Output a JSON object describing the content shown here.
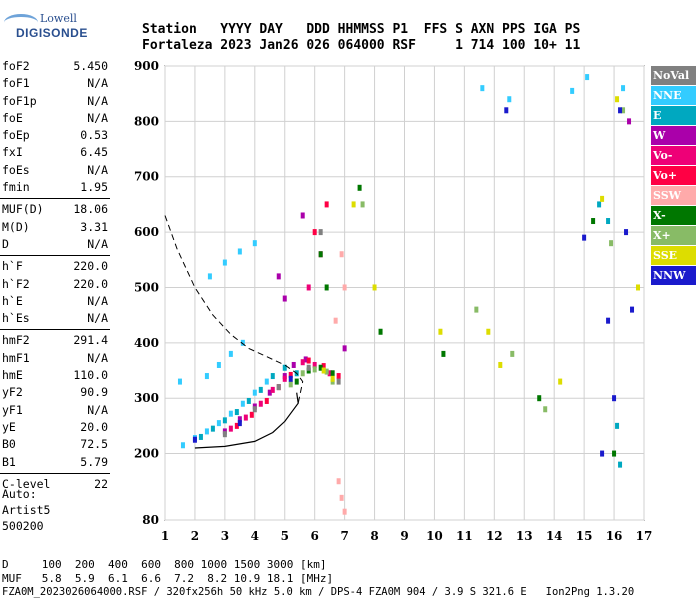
{
  "logo": {
    "line1": "Lowell",
    "line2": "DIGISONDE"
  },
  "header": {
    "line1": "Station   YYYY DAY   DDD HHMMSS P1  FFS S AXN PPS IGA PS",
    "line2": "Fortaleza 2023 Jan26 026 064000 RSF     1 714 100 10+ 11"
  },
  "params": {
    "g1": [
      {
        "name": "foF2",
        "value": "5.450"
      },
      {
        "name": "foF1",
        "value": "N/A"
      },
      {
        "name": "foF1p",
        "value": "N/A"
      },
      {
        "name": "foE",
        "value": "N/A"
      },
      {
        "name": "foEp",
        "value": "0.53"
      },
      {
        "name": "fxI",
        "value": "6.45"
      },
      {
        "name": "foEs",
        "value": "N/A"
      },
      {
        "name": "fmin",
        "value": "1.95"
      }
    ],
    "g2": [
      {
        "name": "MUF(D)",
        "value": "18.06"
      },
      {
        "name": "M(D)",
        "value": "3.31"
      },
      {
        "name": "D",
        "value": "N/A"
      }
    ],
    "g3": [
      {
        "name": "h`F",
        "value": "220.0"
      },
      {
        "name": "h`F2",
        "value": "220.0"
      },
      {
        "name": "h`E",
        "value": "N/A"
      },
      {
        "name": "h`Es",
        "value": "N/A"
      }
    ],
    "g4": [
      {
        "name": "hmF2",
        "value": "291.4"
      },
      {
        "name": "hmF1",
        "value": "N/A"
      },
      {
        "name": "hmE",
        "value": "110.0"
      },
      {
        "name": "yF2",
        "value": "90.9"
      },
      {
        "name": "yF1",
        "value": "N/A"
      },
      {
        "name": "yE",
        "value": "20.0"
      },
      {
        "name": "B0",
        "value": "72.5"
      },
      {
        "name": "B1",
        "value": "5.79"
      }
    ],
    "g5": [
      {
        "name": "C-level",
        "value": "22"
      }
    ]
  },
  "auto": {
    "l1": "Auto:",
    "l2": "Artist5",
    "l3": "500200"
  },
  "legend": [
    {
      "label": "NoVal",
      "color": "#808080"
    },
    {
      "label": "NNE",
      "color": "#33ccff"
    },
    {
      "label": "E",
      "color": "#00a8c0"
    },
    {
      "label": "W",
      "color": "#aa00aa"
    },
    {
      "label": "Vo-",
      "color": "#ee0077"
    },
    {
      "label": "Vo+",
      "color": "#ff0044"
    },
    {
      "label": "SSW",
      "color": "#ffaaaa"
    },
    {
      "label": "X-",
      "color": "#007700"
    },
    {
      "label": "X+",
      "color": "#88bb66"
    },
    {
      "label": "SSE",
      "color": "#dddd00"
    },
    {
      "label": "NNW",
      "color": "#1a1acc"
    }
  ],
  "bottom": {
    "d_line": "D     100  200  400  600  800 1000 1500 3000 [km]",
    "muf_line": "MUF   5.8  5.9  6.1  6.6  7.2  8.2 10.9 18.1 [MHz]",
    "footer": "FZA0M_2023026064000.RSF / 320fx256h 50 kHz 5.0 km / DPS-4 FZA0M 904 / 3.9 S 321.6 E   Ion2Png 1.3.20"
  },
  "chart_data": {
    "type": "scatter",
    "xlim": [
      1,
      17
    ],
    "ylim": [
      80,
      900
    ],
    "xticks": [
      1,
      2,
      3,
      4,
      5,
      6,
      7,
      8,
      9,
      10,
      11,
      12,
      13,
      14,
      15,
      16,
      17
    ],
    "yticks": [
      80,
      200,
      300,
      400,
      500,
      600,
      700,
      800,
      900
    ],
    "grid": true,
    "legend_position": "right",
    "series": [
      {
        "name": "NNE",
        "color": "#33ccff",
        "points": [
          [
            1.6,
            215
          ],
          [
            2.0,
            228
          ],
          [
            2.4,
            240
          ],
          [
            2.8,
            255
          ],
          [
            3.2,
            272
          ],
          [
            3.6,
            290
          ],
          [
            4.0,
            310
          ],
          [
            4.4,
            330
          ],
          [
            2.4,
            340
          ],
          [
            2.8,
            360
          ],
          [
            3.2,
            380
          ],
          [
            3.6,
            400
          ],
          [
            2.5,
            520
          ],
          [
            3.0,
            545
          ],
          [
            3.5,
            565
          ],
          [
            4.0,
            580
          ],
          [
            12.5,
            840
          ],
          [
            14.6,
            855
          ],
          [
            15.1,
            880
          ],
          [
            16.3,
            860
          ],
          [
            11.6,
            860
          ],
          [
            1.5,
            330
          ]
        ]
      },
      {
        "name": "E",
        "color": "#00a8c0",
        "points": [
          [
            2.2,
            230
          ],
          [
            2.6,
            245
          ],
          [
            3.0,
            260
          ],
          [
            3.4,
            275
          ],
          [
            3.8,
            295
          ],
          [
            4.2,
            315
          ],
          [
            4.6,
            340
          ],
          [
            5.0,
            355
          ],
          [
            5.4,
            345
          ],
          [
            15.5,
            650
          ],
          [
            15.8,
            620
          ],
          [
            16.1,
            250
          ],
          [
            16.2,
            180
          ]
        ]
      },
      {
        "name": "W",
        "color": "#aa00aa",
        "points": [
          [
            3.0,
            240
          ],
          [
            3.5,
            262
          ],
          [
            4.0,
            285
          ],
          [
            4.5,
            310
          ],
          [
            5.0,
            340
          ],
          [
            5.3,
            360
          ],
          [
            5.7,
            370
          ],
          [
            4.8,
            520
          ],
          [
            5.0,
            480
          ],
          [
            5.6,
            630
          ],
          [
            7.0,
            390
          ],
          [
            16.5,
            800
          ]
        ]
      },
      {
        "name": "Vo-",
        "color": "#ee0077",
        "points": [
          [
            3.2,
            245
          ],
          [
            3.7,
            265
          ],
          [
            4.2,
            290
          ],
          [
            4.6,
            315
          ],
          [
            5.0,
            335
          ],
          [
            5.6,
            365
          ],
          [
            6.0,
            360
          ],
          [
            6.5,
            345
          ],
          [
            5.8,
            500
          ],
          [
            6.2,
            560
          ]
        ]
      },
      {
        "name": "Vo+",
        "color": "#ff0044",
        "points": [
          [
            3.4,
            250
          ],
          [
            3.9,
            270
          ],
          [
            4.4,
            295
          ],
          [
            4.8,
            320
          ],
          [
            5.2,
            342
          ],
          [
            5.8,
            368
          ],
          [
            6.3,
            358
          ],
          [
            6.8,
            340
          ],
          [
            6.0,
            600
          ],
          [
            6.4,
            650
          ]
        ]
      },
      {
        "name": "SSW",
        "color": "#ffaaaa",
        "points": [
          [
            6.9,
            560
          ],
          [
            7.0,
            500
          ],
          [
            6.8,
            150
          ],
          [
            6.9,
            120
          ],
          [
            7.0,
            95
          ],
          [
            6.7,
            440
          ]
        ]
      },
      {
        "name": "X-",
        "color": "#007700",
        "points": [
          [
            5.4,
            330
          ],
          [
            5.8,
            350
          ],
          [
            6.2,
            355
          ],
          [
            6.6,
            345
          ],
          [
            6.2,
            560
          ],
          [
            6.4,
            500
          ],
          [
            7.5,
            680
          ],
          [
            8.2,
            420
          ],
          [
            10.3,
            380
          ],
          [
            13.5,
            300
          ],
          [
            15.3,
            620
          ],
          [
            16.0,
            200
          ]
        ]
      },
      {
        "name": "X+",
        "color": "#88bb66",
        "points": [
          [
            5.2,
            325
          ],
          [
            5.6,
            345
          ],
          [
            6.0,
            352
          ],
          [
            6.4,
            348
          ],
          [
            6.6,
            330
          ],
          [
            7.6,
            650
          ],
          [
            11.4,
            460
          ],
          [
            12.6,
            380
          ],
          [
            13.7,
            280
          ],
          [
            15.9,
            580
          ],
          [
            16.3,
            820
          ]
        ]
      },
      {
        "name": "SSE",
        "color": "#dddd00",
        "points": [
          [
            6.3,
            350
          ],
          [
            6.6,
            335
          ],
          [
            7.3,
            650
          ],
          [
            8.0,
            500
          ],
          [
            10.2,
            420
          ],
          [
            11.8,
            420
          ],
          [
            12.2,
            360
          ],
          [
            14.2,
            330
          ],
          [
            15.6,
            660
          ],
          [
            16.1,
            840
          ],
          [
            16.8,
            500
          ]
        ]
      },
      {
        "name": "NNW",
        "color": "#1a1acc",
        "points": [
          [
            2.0,
            225
          ],
          [
            3.5,
            255
          ],
          [
            5.2,
            335
          ],
          [
            12.4,
            820
          ],
          [
            15.0,
            590
          ],
          [
            15.6,
            200
          ],
          [
            15.8,
            440
          ],
          [
            16.0,
            300
          ],
          [
            16.2,
            820
          ],
          [
            16.4,
            600
          ],
          [
            16.6,
            460
          ]
        ]
      },
      {
        "name": "NoVal",
        "color": "#808080",
        "points": [
          [
            3.0,
            235
          ],
          [
            4.0,
            280
          ],
          [
            4.8,
            320
          ],
          [
            5.8,
            355
          ],
          [
            6.2,
            600
          ],
          [
            6.8,
            330
          ]
        ]
      }
    ],
    "curves": {
      "profile": [
        [
          2.0,
          210
        ],
        [
          3.0,
          213
        ],
        [
          4.0,
          222
        ],
        [
          4.6,
          238
        ],
        [
          5.0,
          258
        ],
        [
          5.3,
          280
        ],
        [
          5.45,
          291
        ],
        [
          5.4,
          310
        ]
      ],
      "dashed": [
        [
          1.0,
          630
        ],
        [
          1.4,
          570
        ],
        [
          2.0,
          500
        ],
        [
          2.6,
          450
        ],
        [
          3.2,
          415
        ],
        [
          3.8,
          390
        ],
        [
          4.4,
          375
        ],
        [
          5.0,
          360
        ],
        [
          5.4,
          345
        ],
        [
          5.6,
          330
        ],
        [
          5.45,
          291
        ]
      ]
    }
  }
}
